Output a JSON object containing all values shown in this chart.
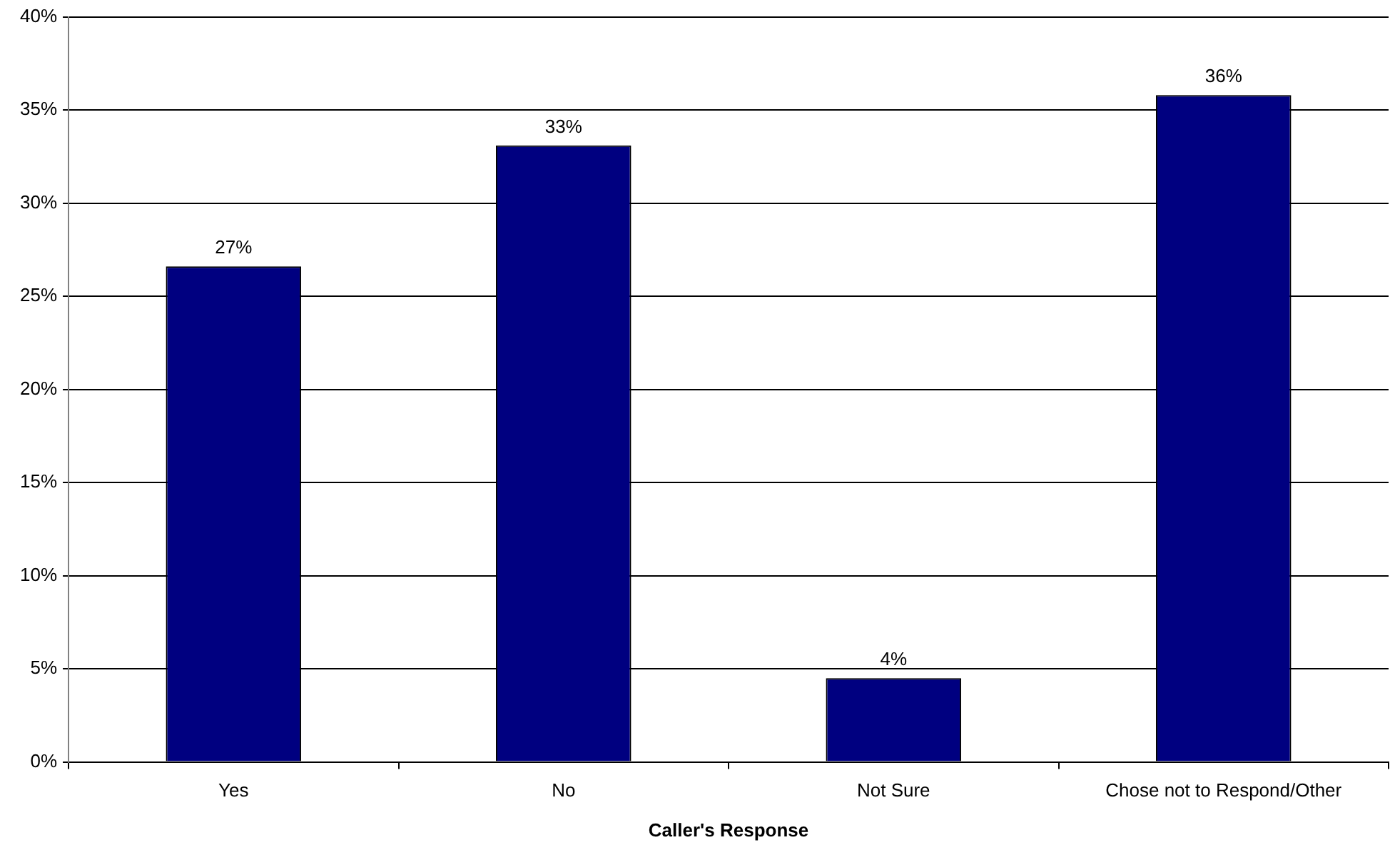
{
  "chart_data": {
    "type": "bar",
    "xlabel": "Caller's Response",
    "categories": [
      "Yes",
      "No",
      "Not Sure",
      "Chose not to Respond/Other"
    ],
    "values": [
      26.6,
      33.1,
      4.5,
      35.8
    ],
    "color": "#000080",
    "value_labels": [
      "27%",
      "33%",
      "4%",
      "36%"
    ],
    "ylim": [
      0,
      40
    ],
    "yticks": [
      {
        "value": 0,
        "label": "0%"
      },
      {
        "value": 5,
        "label": "5%"
      },
      {
        "value": 10,
        "label": "10%"
      },
      {
        "value": 15,
        "label": "15%"
      },
      {
        "value": 20,
        "label": "20%"
      },
      {
        "value": 25,
        "label": "25%"
      },
      {
        "value": 30,
        "label": "30%"
      },
      {
        "value": 35,
        "label": "35%"
      },
      {
        "value": 40,
        "label": "40%"
      }
    ],
    "grid": "y"
  }
}
